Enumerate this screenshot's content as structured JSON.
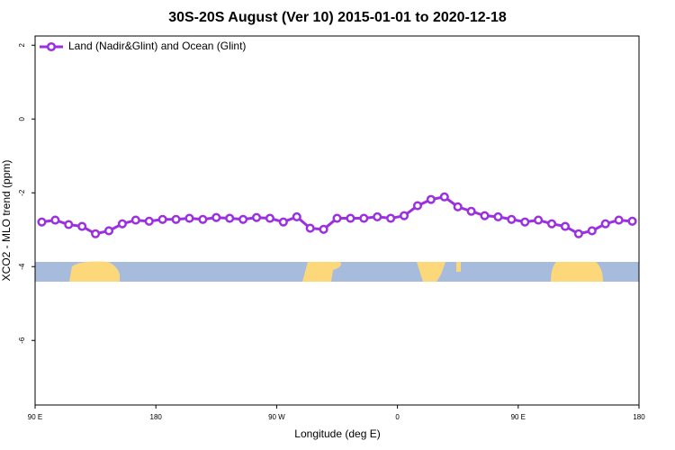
{
  "chart_data": {
    "type": "line",
    "title": "30S-20S August (Ver 10)   2015-01-01 to 2020-12-18",
    "x_label": "Longitude (deg E)",
    "y_label": "XCO2 - MLO trend (ppm)",
    "legend_position": "top-left",
    "xlim": [
      90,
      540
    ],
    "xticks": [
      {
        "value": 90,
        "label": "90 E"
      },
      180,
      {
        "value": 270,
        "label": "90 W"
      },
      {
        "value": 360,
        "label": "0"
      },
      {
        "value": 450,
        "label": "90 E"
      },
      {
        "value": 540,
        "label": "180"
      }
    ],
    "ylim": [
      -7.75,
      2.25
    ],
    "yticks": [
      2,
      0,
      -2,
      -4,
      -6
    ],
    "x": [
      95,
      105,
      115,
      125,
      135,
      145,
      155,
      165,
      175,
      185,
      195,
      205,
      215,
      225,
      235,
      245,
      255,
      265,
      275,
      285,
      295,
      305,
      315,
      325,
      335,
      345,
      355,
      365,
      375,
      385,
      395,
      405,
      415,
      425,
      435,
      445,
      455,
      465,
      475,
      485,
      495,
      505,
      515,
      525,
      535
    ],
    "series": [
      {
        "name": "Land (Nadir&Glint) and Ocean (Glint)",
        "color": "#9b30e0",
        "values": [
          -2.79,
          -2.74,
          -2.86,
          -2.91,
          -3.11,
          -3.03,
          -2.84,
          -2.74,
          -2.77,
          -2.72,
          -2.72,
          -2.69,
          -2.72,
          -2.67,
          -2.69,
          -2.72,
          -2.67,
          -2.69,
          -2.79,
          -2.65,
          -2.96,
          -2.99,
          -2.69,
          -2.69,
          -2.69,
          -2.65,
          -2.69,
          -2.62,
          -2.35,
          -2.18,
          -2.11,
          -2.38,
          -2.5,
          -2.62,
          -2.65,
          -2.72,
          -2.79,
          -2.74,
          -2.84,
          -2.91,
          -3.11,
          -3.03,
          -2.84,
          -2.74,
          -2.77
        ]
      }
    ]
  }
}
